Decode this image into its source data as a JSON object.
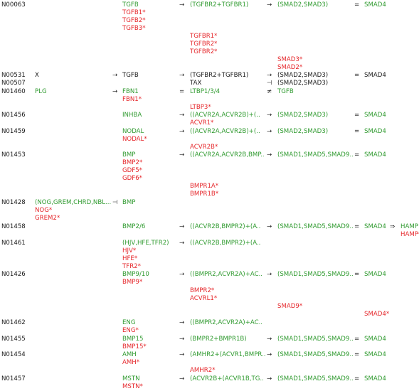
{
  "colors": {
    "black": "#1a1a1a",
    "green": "#2f9a2f",
    "red": "#e5262a"
  },
  "entries": [
    {
      "name": "id-N00063",
      "text": "N00063",
      "color": "black"
    },
    {
      "name": "node-TGFB",
      "text": "TGFB",
      "color": "green"
    },
    {
      "name": "arrow",
      "text": "→",
      "color": "black"
    },
    {
      "name": "node-TGFBR2-TGFBR1",
      "text": "(TGFBR2+TGFBR1)",
      "color": "green"
    },
    {
      "name": "arrow",
      "text": "→",
      "color": "black"
    },
    {
      "name": "node-SMAD2-SMAD3",
      "text": "(SMAD2,SMAD3)",
      "color": "green"
    },
    {
      "name": "equals",
      "text": "=",
      "color": "black"
    },
    {
      "name": "node-SMAD4",
      "text": "SMAD4",
      "color": "green"
    },
    {
      "name": "variant-TGFB1",
      "text": "TGFB1*",
      "color": "red"
    },
    {
      "name": "variant-TGFB2",
      "text": "TGFB2*",
      "color": "red"
    },
    {
      "name": "variant-TGFB3",
      "text": "TGFB3*",
      "color": "red"
    },
    {
      "name": "variant-TGFBR1",
      "text": "TGFBR1*",
      "color": "red"
    },
    {
      "name": "variant-TGFBR2",
      "text": "TGFBR2*",
      "color": "red"
    },
    {
      "name": "variant-TGFBR2",
      "text": "TGFBR2*",
      "color": "red"
    },
    {
      "name": "variant-SMAD3",
      "text": "SMAD3*",
      "color": "red"
    },
    {
      "name": "variant-SMAD2",
      "text": "SMAD2*",
      "color": "red"
    },
    {
      "name": "id-N00531",
      "text": "N00531",
      "color": "black"
    },
    {
      "name": "node-X",
      "text": "X",
      "color": "black"
    },
    {
      "name": "arrow",
      "text": "→",
      "color": "black"
    },
    {
      "name": "node-TGFB",
      "text": "TGFB",
      "color": "black"
    },
    {
      "name": "arrow",
      "text": "→",
      "color": "black"
    },
    {
      "name": "node-TGFBR2-TGFBR1",
      "text": "(TGFBR2+TGFBR1)",
      "color": "black"
    },
    {
      "name": "arrow",
      "text": "→",
      "color": "black"
    },
    {
      "name": "node-SMAD2-SMAD3",
      "text": "(SMAD2,SMAD3)",
      "color": "black"
    },
    {
      "name": "equals",
      "text": "=",
      "color": "black"
    },
    {
      "name": "node-SMAD4",
      "text": "SMAD4",
      "color": "black"
    },
    {
      "name": "id-N00507",
      "text": "N00507",
      "color": "black"
    },
    {
      "name": "node-TAX",
      "text": "TAX",
      "color": "black"
    },
    {
      "name": "inhibit",
      "text": "⊣",
      "color": "black"
    },
    {
      "name": "node-SMAD2-SMAD3",
      "text": "(SMAD2,SMAD3)",
      "color": "black"
    },
    {
      "name": "id-N01460",
      "text": "N01460",
      "color": "black"
    },
    {
      "name": "node-PLG",
      "text": "PLG",
      "color": "green"
    },
    {
      "name": "arrow",
      "text": "→",
      "color": "black"
    },
    {
      "name": "node-FBN1",
      "text": "FBN1",
      "color": "green"
    },
    {
      "name": "equals",
      "text": "=",
      "color": "black"
    },
    {
      "name": "node-LTBP1-3-4",
      "text": "LTBP1/3/4",
      "color": "green"
    },
    {
      "name": "not-equal",
      "text": "≠",
      "color": "black"
    },
    {
      "name": "node-TGFB",
      "text": "TGFB",
      "color": "green"
    },
    {
      "name": "variant-FBN1",
      "text": "FBN1*",
      "color": "red"
    },
    {
      "name": "variant-LTBP3",
      "text": "LTBP3*",
      "color": "red"
    },
    {
      "name": "id-N01456",
      "text": "N01456",
      "color": "black"
    },
    {
      "name": "node-INHBA",
      "text": "INHBA",
      "color": "green"
    },
    {
      "name": "arrow",
      "text": "→",
      "color": "black"
    },
    {
      "name": "node-ACVR2A-ACVR2B",
      "text": "((ACVR2A,ACVR2B)+(..",
      "color": "green"
    },
    {
      "name": "arrow",
      "text": "→",
      "color": "black"
    },
    {
      "name": "node-SMAD2-SMAD3",
      "text": "(SMAD2,SMAD3)",
      "color": "green"
    },
    {
      "name": "equals",
      "text": "=",
      "color": "black"
    },
    {
      "name": "node-SMAD4",
      "text": "SMAD4",
      "color": "green"
    },
    {
      "name": "variant-ACVR1",
      "text": "ACVR1*",
      "color": "red"
    },
    {
      "name": "id-N01459",
      "text": "N01459",
      "color": "black"
    },
    {
      "name": "node-NODAL",
      "text": "NODAL",
      "color": "green"
    },
    {
      "name": "arrow",
      "text": "→",
      "color": "black"
    },
    {
      "name": "node-ACVR2A-ACVR2B",
      "text": "((ACVR2A,ACVR2B)+(..",
      "color": "green"
    },
    {
      "name": "arrow",
      "text": "→",
      "color": "black"
    },
    {
      "name": "node-SMAD2-SMAD3",
      "text": "(SMAD2,SMAD3)",
      "color": "green"
    },
    {
      "name": "equals",
      "text": "=",
      "color": "black"
    },
    {
      "name": "node-SMAD4",
      "text": "SMAD4",
      "color": "green"
    },
    {
      "name": "variant-NODAL",
      "text": "NODAL*",
      "color": "red"
    },
    {
      "name": "variant-ACVR2B",
      "text": "ACVR2B*",
      "color": "red"
    },
    {
      "name": "id-N01453",
      "text": "N01453",
      "color": "black"
    },
    {
      "name": "node-BMP",
      "text": "BMP",
      "color": "green"
    },
    {
      "name": "arrow",
      "text": "→",
      "color": "black"
    },
    {
      "name": "node-ACVR2A-ACVR2B-BMP",
      "text": "((ACVR2A,ACVR2B,BMP..",
      "color": "green"
    },
    {
      "name": "arrow",
      "text": "→",
      "color": "black"
    },
    {
      "name": "node-SMAD1-SMAD5-SMAD9",
      "text": "(SMAD1,SMAD5,SMAD9..",
      "color": "green"
    },
    {
      "name": "equals",
      "text": "=",
      "color": "black"
    },
    {
      "name": "node-SMAD4",
      "text": "SMAD4",
      "color": "green"
    },
    {
      "name": "variant-BMP2",
      "text": "BMP2*",
      "color": "red"
    },
    {
      "name": "variant-GDF5",
      "text": "GDF5*",
      "color": "red"
    },
    {
      "name": "variant-GDF6",
      "text": "GDF6*",
      "color": "red"
    },
    {
      "name": "variant-BMPR1A",
      "text": "BMPR1A*",
      "color": "red"
    },
    {
      "name": "variant-BMPR1B",
      "text": "BMPR1B*",
      "color": "red"
    },
    {
      "name": "id-N01428",
      "text": "N01428",
      "color": "black"
    },
    {
      "name": "node-NOG-GREM-CHRD-NBL",
      "text": "(NOG,GREM,CHRD,NBL...",
      "color": "green"
    },
    {
      "name": "inhibit",
      "text": "⊣",
      "color": "black"
    },
    {
      "name": "node-BMP",
      "text": "BMP",
      "color": "green"
    },
    {
      "name": "variant-NOG",
      "text": "NOG*",
      "color": "red"
    },
    {
      "name": "variant-GREM2",
      "text": "GREM2*",
      "color": "red"
    },
    {
      "name": "id-N01458",
      "text": "N01458",
      "color": "black"
    },
    {
      "name": "node-BMP2-6",
      "text": "BMP2/6",
      "color": "green"
    },
    {
      "name": "arrow",
      "text": "→",
      "color": "black"
    },
    {
      "name": "node-ACVR2B-BMPR2",
      "text": "((ACVR2B,BMPR2)+(A..",
      "color": "green"
    },
    {
      "name": "arrow",
      "text": "→",
      "color": "black"
    },
    {
      "name": "node-SMAD1-SMAD5-SMAD9",
      "text": "(SMAD1,SMAD5,SMAD9..",
      "color": "green"
    },
    {
      "name": "equals",
      "text": "=",
      "color": "black"
    },
    {
      "name": "node-SMAD4",
      "text": "SMAD4",
      "color": "green"
    },
    {
      "name": "double-arrow",
      "text": "⇒",
      "color": "black"
    },
    {
      "name": "node-HAMP",
      "text": "HAMP",
      "color": "green"
    },
    {
      "name": "variant-HAMP",
      "text": "HAMP*",
      "color": "red"
    },
    {
      "name": "id-N01461",
      "text": "N01461",
      "color": "black"
    },
    {
      "name": "node-HJV-HFE-TFR2",
      "text": "(HJV,HFE,TFR2)",
      "color": "green"
    },
    {
      "name": "arrow",
      "text": "→",
      "color": "black"
    },
    {
      "name": "node-ACVR2B-BMPR2",
      "text": "((ACVR2B,BMPR2)+(A..",
      "color": "green"
    },
    {
      "name": "variant-HJV",
      "text": "HJV*",
      "color": "red"
    },
    {
      "name": "variant-HFE",
      "text": "HFE*",
      "color": "red"
    },
    {
      "name": "variant-TFR2",
      "text": "TFR2*",
      "color": "red"
    },
    {
      "name": "id-N01426",
      "text": "N01426",
      "color": "black"
    },
    {
      "name": "node-BMP9-10",
      "text": "BMP9/10",
      "color": "green"
    },
    {
      "name": "arrow",
      "text": "→",
      "color": "black"
    },
    {
      "name": "node-BMPR2-ACVR2A",
      "text": "((BMPR2,ACVR2A)+AC..",
      "color": "green"
    },
    {
      "name": "arrow",
      "text": "→",
      "color": "black"
    },
    {
      "name": "node-SMAD1-SMAD5-SMAD9",
      "text": "(SMAD1,SMAD5,SMAD9..",
      "color": "green"
    },
    {
      "name": "equals",
      "text": "=",
      "color": "black"
    },
    {
      "name": "node-SMAD4",
      "text": "SMAD4",
      "color": "green"
    },
    {
      "name": "variant-BMP9",
      "text": "BMP9*",
      "color": "red"
    },
    {
      "name": "variant-BMPR2",
      "text": "BMPR2*",
      "color": "red"
    },
    {
      "name": "variant-ACVRL1",
      "text": "ACVRL1*",
      "color": "red"
    },
    {
      "name": "variant-SMAD9",
      "text": "SMAD9*",
      "color": "red"
    },
    {
      "name": "variant-SMAD4",
      "text": "SMAD4*",
      "color": "red"
    },
    {
      "name": "id-N01462",
      "text": "N01462",
      "color": "black"
    },
    {
      "name": "node-ENG",
      "text": "ENG",
      "color": "green"
    },
    {
      "name": "arrow",
      "text": "→",
      "color": "black"
    },
    {
      "name": "node-BMPR2-ACVR2A",
      "text": "((BMPR2,ACVR2A)+AC..",
      "color": "green"
    },
    {
      "name": "variant-ENG",
      "text": "ENG*",
      "color": "red"
    },
    {
      "name": "id-N01455",
      "text": "N01455",
      "color": "black"
    },
    {
      "name": "node-BMP15",
      "text": "BMP15",
      "color": "green"
    },
    {
      "name": "arrow",
      "text": "→",
      "color": "black"
    },
    {
      "name": "node-BMPR2-BMPR1B",
      "text": "(BMPR2+BMPR1B)",
      "color": "green"
    },
    {
      "name": "arrow",
      "text": "→",
      "color": "black"
    },
    {
      "name": "node-SMAD1-SMAD5-SMAD9",
      "text": "(SMAD1,SMAD5,SMAD9..",
      "color": "green"
    },
    {
      "name": "equals",
      "text": "=",
      "color": "black"
    },
    {
      "name": "node-SMAD4",
      "text": "SMAD4",
      "color": "green"
    },
    {
      "name": "variant-BMP15",
      "text": "BMP15*",
      "color": "red"
    },
    {
      "name": "id-N01454",
      "text": "N01454",
      "color": "black"
    },
    {
      "name": "node-AMH",
      "text": "AMH",
      "color": "green"
    },
    {
      "name": "arrow",
      "text": "→",
      "color": "black"
    },
    {
      "name": "node-AMHR2-ACVR1-BMPR",
      "text": "(AMHR2+(ACVR1,BMPR..",
      "color": "green"
    },
    {
      "name": "arrow",
      "text": "→",
      "color": "black"
    },
    {
      "name": "node-SMAD1-SMAD5-SMAD9",
      "text": "(SMAD1,SMAD5,SMAD9..",
      "color": "green"
    },
    {
      "name": "equals",
      "text": "=",
      "color": "black"
    },
    {
      "name": "node-SMAD4",
      "text": "SMAD4",
      "color": "green"
    },
    {
      "name": "variant-AMH",
      "text": "AMH*",
      "color": "red"
    },
    {
      "name": "variant-AMHR2",
      "text": "AMHR2*",
      "color": "red"
    },
    {
      "name": "id-N01457",
      "text": "N01457",
      "color": "black"
    },
    {
      "name": "node-MSTN",
      "text": "MSTN",
      "color": "green"
    },
    {
      "name": "arrow",
      "text": "→",
      "color": "black"
    },
    {
      "name": "node-ACVR2B-ACVR1B-TG",
      "text": "(ACVR2B+(ACVR1B,TG..",
      "color": "green"
    },
    {
      "name": "arrow",
      "text": "→",
      "color": "black"
    },
    {
      "name": "node-SMAD1-SMAD5-SMAD9",
      "text": "(SMAD1,SMAD5,SMAD9..",
      "color": "green"
    },
    {
      "name": "equals",
      "text": "=",
      "color": "black"
    },
    {
      "name": "node-SMAD4",
      "text": "SMAD4",
      "color": "green"
    },
    {
      "name": "variant-MSTN",
      "text": "MSTN*",
      "color": "red"
    }
  ]
}
